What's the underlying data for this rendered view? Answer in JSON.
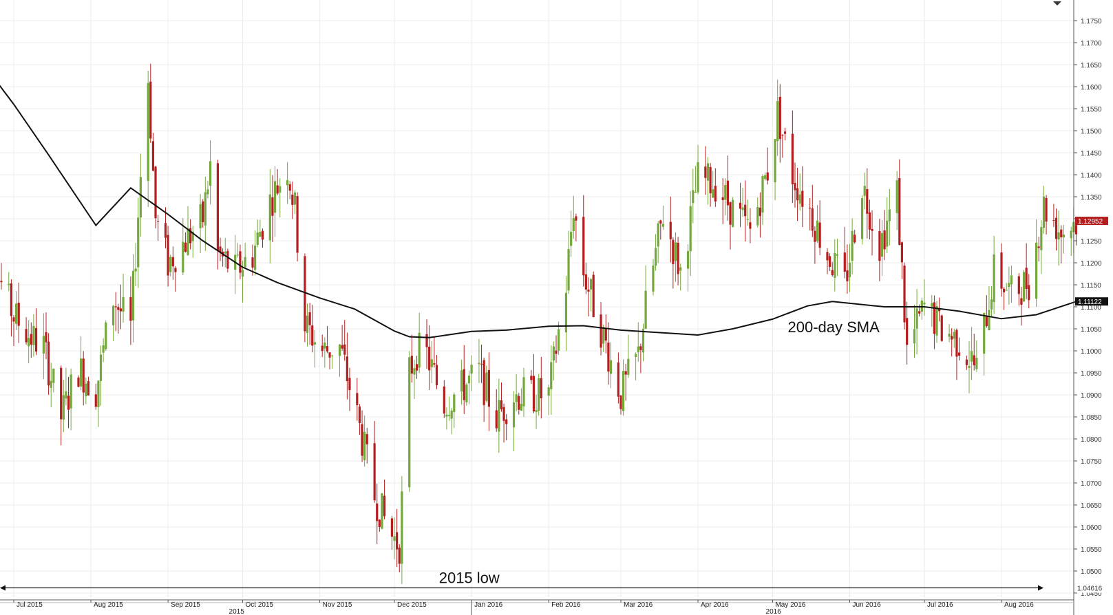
{
  "chart_data": {
    "type": "candlestick",
    "y_axis": {
      "position": "right",
      "ylim": [
        1.045,
        1.179
      ],
      "ticks": [
        "1.1750",
        "1.1700",
        "1.1650",
        "1.1600",
        "1.1550",
        "1.1500",
        "1.1450",
        "1.1400",
        "1.1350",
        "1.1300",
        "1.1250",
        "1.1200",
        "1.1150",
        "1.1100",
        "1.1050",
        "1.1000",
        "1.0950",
        "1.0900",
        "1.0850",
        "1.0800",
        "1.0750",
        "1.0700",
        "1.0650",
        "1.0600",
        "1.0550",
        "1.0500",
        "1.0450"
      ]
    },
    "x_axis": {
      "months": [
        "Jul 2015",
        "Aug 2015",
        "Sep 2015",
        "Oct 2015",
        "Nov 2015",
        "Dec 2015",
        "Jan 2016",
        "Feb 2016",
        "Mar 2016",
        "Apr 2016",
        "May 2016",
        "Jun 2016",
        "Jul 2016",
        "Aug 2016"
      ],
      "years": [
        "2015",
        "2016"
      ]
    },
    "grid": true,
    "colors": {
      "up": "#74a83c",
      "down": "#b51e1e",
      "sma": "#111111",
      "last_price_tag": "#b51e1e",
      "sma_tag": "#111111"
    },
    "last_price": {
      "label": "1.12952",
      "value": 1.12952
    },
    "sma_value": {
      "label": "1.11122",
      "value": 1.11122
    },
    "low_line": {
      "label": "1.04616",
      "value": 1.04616
    },
    "annotations": [
      {
        "text": "200-day SMA",
        "date": "2016-06-01",
        "value": 1.1055
      },
      {
        "text": "2015 low",
        "date": "2015-11-24",
        "value": 1.0485
      }
    ],
    "sma_series": {
      "name": "200-day SMA",
      "points": [
        [
          "2015-06-17",
          1.1665
        ],
        [
          "2015-07-01",
          1.156
        ],
        [
          "2015-07-15",
          1.1445
        ],
        [
          "2015-08-03",
          1.1285
        ],
        [
          "2015-08-17",
          1.137
        ],
        [
          "2015-09-01",
          1.131
        ],
        [
          "2015-09-15",
          1.125
        ],
        [
          "2015-10-01",
          1.119
        ],
        [
          "2015-10-15",
          1.1155
        ],
        [
          "2015-11-01",
          1.112
        ],
        [
          "2015-11-15",
          1.1095
        ],
        [
          "2015-12-01",
          1.1045
        ],
        [
          "2015-12-07",
          1.1032
        ],
        [
          "2015-12-15",
          1.103
        ],
        [
          "2016-01-01",
          1.1044
        ],
        [
          "2016-01-15",
          1.1047
        ],
        [
          "2016-02-01",
          1.1056
        ],
        [
          "2016-02-15",
          1.1057
        ],
        [
          "2016-03-01",
          1.1047
        ],
        [
          "2016-03-15",
          1.1042
        ],
        [
          "2016-04-01",
          1.1036
        ],
        [
          "2016-04-15",
          1.105
        ],
        [
          "2016-05-01",
          1.1072
        ],
        [
          "2016-05-15",
          1.1102
        ],
        [
          "2016-05-25",
          1.1112
        ],
        [
          "2016-06-15",
          1.11
        ],
        [
          "2016-07-01",
          1.11
        ],
        [
          "2016-07-15",
          1.109
        ],
        [
          "2016-08-01",
          1.1073
        ],
        [
          "2016-08-15",
          1.1082
        ],
        [
          "2016-08-31",
          1.1112
        ]
      ]
    },
    "ohlc_path": [
      [
        "2015-06-17",
        1.126
      ],
      [
        "2015-06-24",
        1.118
      ],
      [
        "2015-07-01",
        1.108
      ],
      [
        "2015-07-08",
        1.103
      ],
      [
        "2015-07-13",
        1.101
      ],
      [
        "2015-07-20",
        1.085
      ],
      [
        "2015-07-27",
        1.096
      ],
      [
        "2015-08-03",
        1.091
      ],
      [
        "2015-08-10",
        1.112
      ],
      [
        "2015-08-17",
        1.105
      ],
      [
        "2015-08-21",
        1.14
      ],
      [
        "2015-08-24",
        1.162
      ],
      [
        "2015-08-27",
        1.13
      ],
      [
        "2015-09-01",
        1.12
      ],
      [
        "2015-09-08",
        1.125
      ],
      [
        "2015-09-15",
        1.13
      ],
      [
        "2015-09-18",
        1.142
      ],
      [
        "2015-09-21",
        1.122
      ],
      [
        "2015-09-28",
        1.118
      ],
      [
        "2015-10-05",
        1.122
      ],
      [
        "2015-10-12",
        1.134
      ],
      [
        "2015-10-19",
        1.142
      ],
      [
        "2015-10-22",
        1.132
      ],
      [
        "2015-10-26",
        1.106
      ],
      [
        "2015-11-02",
        1.1
      ],
      [
        "2015-11-09",
        1.101
      ],
      [
        "2015-11-16",
        1.085
      ],
      [
        "2015-11-23",
        1.067
      ],
      [
        "2015-11-30",
        1.058
      ],
      [
        "2015-12-03",
        1.056
      ],
      [
        "2015-12-07",
        1.095
      ],
      [
        "2015-12-10",
        1.1
      ],
      [
        "2015-12-14",
        1.099
      ],
      [
        "2015-12-21",
        1.088
      ],
      [
        "2016-01-04",
        1.095
      ],
      [
        "2016-01-11",
        1.085
      ],
      [
        "2016-01-18",
        1.09
      ],
      [
        "2016-01-25",
        1.09
      ],
      [
        "2016-02-01",
        1.09
      ],
      [
        "2016-02-08",
        1.115
      ],
      [
        "2016-02-11",
        1.133
      ],
      [
        "2016-02-15",
        1.118
      ],
      [
        "2016-02-22",
        1.105
      ],
      [
        "2016-03-01",
        1.09
      ],
      [
        "2016-03-08",
        1.099
      ],
      [
        "2016-03-11",
        1.11
      ],
      [
        "2016-03-18",
        1.131
      ],
      [
        "2016-03-25",
        1.118
      ],
      [
        "2016-04-01",
        1.139
      ],
      [
        "2016-04-08",
        1.138
      ],
      [
        "2016-04-15",
        1.132
      ],
      [
        "2016-04-22",
        1.127
      ],
      [
        "2016-04-29",
        1.141
      ],
      [
        "2016-05-03",
        1.154
      ],
      [
        "2016-05-09",
        1.14
      ],
      [
        "2016-05-16",
        1.132
      ],
      [
        "2016-05-23",
        1.122
      ],
      [
        "2016-05-30",
        1.115
      ],
      [
        "2016-06-06",
        1.138
      ],
      [
        "2016-06-13",
        1.124
      ],
      [
        "2016-06-20",
        1.136
      ],
      [
        "2016-06-24",
        1.1
      ],
      [
        "2016-07-01",
        1.11
      ],
      [
        "2016-07-08",
        1.105
      ],
      [
        "2016-07-15",
        1.102
      ],
      [
        "2016-07-22",
        1.096
      ],
      [
        "2016-07-29",
        1.118
      ],
      [
        "2016-08-05",
        1.113
      ],
      [
        "2016-08-12",
        1.116
      ],
      [
        "2016-08-18",
        1.133
      ],
      [
        "2016-08-25",
        1.127
      ],
      [
        "2016-08-31",
        1.1295
      ]
    ]
  }
}
